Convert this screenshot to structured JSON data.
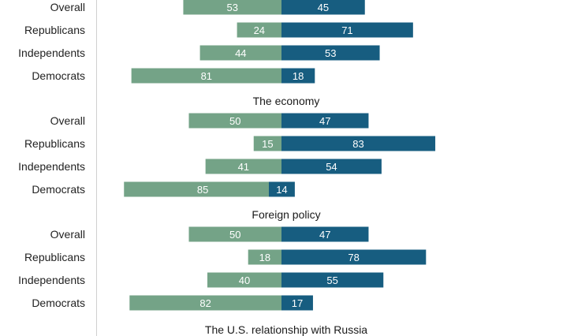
{
  "chart_data": {
    "type": "bar",
    "orientation": "horizontal-diverging",
    "colors": {
      "left": "#74a387",
      "right": "#175d80",
      "axis": "#cfcfcf"
    },
    "sections": [
      {
        "title": "",
        "rows": [
          {
            "label": "Overall",
            "left": 53,
            "right": 45
          },
          {
            "label": "Republicans",
            "left": 24,
            "right": 71
          },
          {
            "label": "Independents",
            "left": 44,
            "right": 53
          },
          {
            "label": "Democrats",
            "left": 81,
            "right": 18
          }
        ]
      },
      {
        "title": "The economy",
        "rows": [
          {
            "label": "Overall",
            "left": 50,
            "right": 47
          },
          {
            "label": "Republicans",
            "left": 15,
            "right": 83
          },
          {
            "label": "Independents",
            "left": 41,
            "right": 54
          },
          {
            "label": "Democrats",
            "left": 85,
            "right": 14
          }
        ]
      },
      {
        "title": "Foreign policy",
        "rows": [
          {
            "label": "Overall",
            "left": 50,
            "right": 47
          },
          {
            "label": "Republicans",
            "left": 18,
            "right": 78
          },
          {
            "label": "Independents",
            "left": 40,
            "right": 55
          },
          {
            "label": "Democrats",
            "left": 82,
            "right": 17
          }
        ]
      },
      {
        "title": "The U.S. relationship with Russia",
        "rows": []
      }
    ]
  }
}
